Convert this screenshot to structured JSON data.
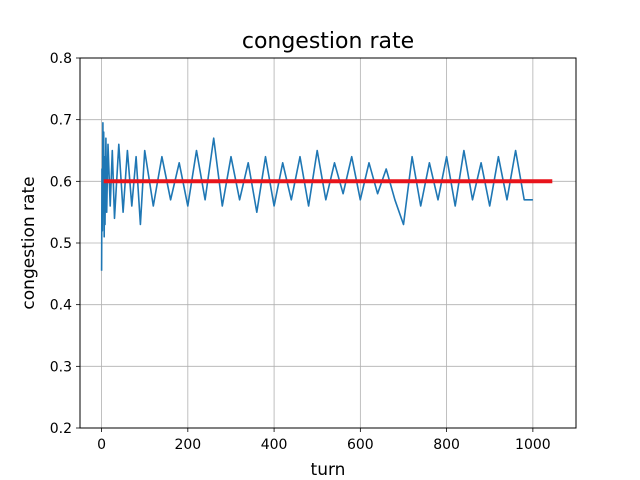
{
  "chart_data": {
    "type": "line",
    "title": "congestion rate",
    "xlabel": "turn",
    "ylabel": "congestion rate",
    "xlim": [
      -50,
      1100
    ],
    "ylim": [
      0.2,
      0.8
    ],
    "xticks": [
      0,
      200,
      400,
      600,
      800,
      1000
    ],
    "yticks": [
      0.2,
      0.3,
      0.4,
      0.5,
      0.6,
      0.7,
      0.8
    ],
    "xtick_labels": [
      "0",
      "200",
      "400",
      "600",
      "800",
      "1000"
    ],
    "ytick_labels": [
      "0.2",
      "0.3",
      "0.4",
      "0.5",
      "0.6",
      "0.7",
      "0.8"
    ],
    "grid": true,
    "series": [
      {
        "color": "#1f77b4",
        "x": [
          0,
          1,
          2,
          3,
          4,
          5,
          6,
          7,
          8,
          10,
          12,
          15,
          20,
          25,
          30,
          40,
          50,
          60,
          70,
          80,
          90,
          100,
          120,
          140,
          160,
          180,
          200,
          220,
          240,
          260,
          280,
          300,
          320,
          340,
          360,
          380,
          400,
          420,
          440,
          460,
          480,
          500,
          520,
          540,
          560,
          580,
          600,
          620,
          640,
          660,
          680,
          700,
          720,
          740,
          760,
          780,
          800,
          820,
          840,
          860,
          880,
          900,
          920,
          940,
          960,
          980,
          1000
        ],
        "y": [
          0.455,
          0.62,
          0.52,
          0.695,
          0.55,
          0.68,
          0.51,
          0.64,
          0.53,
          0.67,
          0.55,
          0.66,
          0.56,
          0.65,
          0.54,
          0.66,
          0.55,
          0.65,
          0.56,
          0.64,
          0.53,
          0.65,
          0.56,
          0.64,
          0.57,
          0.63,
          0.56,
          0.65,
          0.57,
          0.67,
          0.56,
          0.64,
          0.57,
          0.63,
          0.55,
          0.64,
          0.56,
          0.63,
          0.57,
          0.64,
          0.56,
          0.65,
          0.57,
          0.63,
          0.58,
          0.64,
          0.57,
          0.63,
          0.58,
          0.62,
          0.57,
          0.53,
          0.64,
          0.56,
          0.63,
          0.57,
          0.64,
          0.56,
          0.65,
          0.57,
          0.63,
          0.56,
          0.64,
          0.57,
          0.65,
          0.57,
          0.57
        ]
      },
      {
        "color": "#e8141b",
        "x": [
          5,
          1045
        ],
        "y": [
          0.6,
          0.6
        ]
      }
    ]
  }
}
